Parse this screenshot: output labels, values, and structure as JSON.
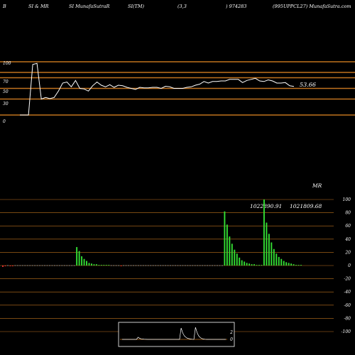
{
  "header": {
    "items": [
      "B",
      "SI & MR",
      "SI MunafaSutraR",
      "SI(TM)",
      "(3,3",
      ") 974283",
      "(995UPPCL27) MunafaSutra.com"
    ]
  },
  "colors": {
    "background": "#000000",
    "band": "#c0731e",
    "rsi_line": "#ffffff",
    "mrsi_bar": "#33dd33",
    "mrsi_neg": "#ff3333",
    "text": "#ffffff"
  },
  "chart_data": [
    {
      "type": "line",
      "name": "rsi",
      "yticks": [
        "100",
        "70",
        "50",
        "30",
        "0"
      ],
      "ylim": [
        0,
        100
      ],
      "bands": [
        100,
        80,
        70,
        50,
        30,
        0
      ],
      "last_value_label": "53.66",
      "values": [
        0,
        0,
        0,
        95,
        97,
        30,
        33,
        31,
        33,
        45,
        60,
        62,
        53,
        65,
        50,
        49,
        45,
        55,
        62,
        56,
        53,
        57,
        52,
        56,
        55,
        52,
        50,
        48,
        52,
        51,
        51,
        52,
        52,
        50,
        54,
        53,
        50,
        50,
        50,
        52,
        53,
        56,
        58,
        63,
        60,
        63,
        63,
        64,
        64,
        67,
        67,
        67,
        61,
        65,
        67,
        69,
        64,
        63,
        66,
        64,
        60,
        60,
        61,
        55,
        53.66
      ]
    },
    {
      "type": "bar",
      "name": "mrsi",
      "title": "MR",
      "yticks": [
        "100",
        "80",
        "60",
        "40",
        "20",
        "0",
        "-20",
        "-40",
        "-60",
        "-80",
        "-100"
      ],
      "ylim": [
        -100,
        100
      ],
      "annotations": [
        "1022890.91",
        "1021809.68"
      ],
      "values": [
        -2,
        -1,
        0,
        -1,
        -1,
        0,
        0,
        0,
        0,
        0,
        0,
        0,
        0,
        0,
        0,
        0,
        0,
        0,
        0,
        0,
        0,
        0,
        0,
        0,
        0,
        0,
        0,
        0,
        0,
        0,
        28,
        22,
        14,
        10,
        7,
        4,
        3,
        2,
        2,
        1,
        1,
        1,
        1,
        1,
        0,
        0,
        0,
        0,
        -1,
        0,
        0,
        0,
        0,
        0,
        0,
        0,
        0,
        0,
        0,
        0,
        0,
        0,
        0,
        0,
        0,
        0,
        0,
        0,
        0,
        0,
        0,
        0,
        0,
        0,
        0,
        0,
        0,
        0,
        0,
        0,
        0,
        0,
        0,
        0,
        0,
        0,
        0,
        0,
        0,
        0,
        82,
        62,
        44,
        33,
        24,
        18,
        12,
        8,
        6,
        4,
        3,
        2,
        2,
        1,
        1,
        1,
        100,
        65,
        48,
        35,
        25,
        18,
        13,
        10,
        7,
        5,
        4,
        3,
        2,
        1,
        1,
        1
      ]
    },
    {
      "type": "line",
      "name": "mini-overview",
      "yticks": [
        "2",
        "0"
      ],
      "values": [
        0,
        0,
        0,
        0,
        0,
        0,
        0,
        0,
        0,
        0,
        0.6,
        0.3,
        0.15,
        0.1,
        0.05,
        0.02,
        0,
        0,
        0,
        0,
        0,
        0,
        0,
        0,
        0,
        0,
        0,
        0,
        0,
        0,
        0,
        0,
        0,
        0,
        0,
        0,
        0,
        3.2,
        1.8,
        1.0,
        0.6,
        0.3,
        0.2,
        0.1,
        0.05,
        0,
        3.4,
        1.9,
        1.0,
        0.5,
        0.25,
        0.1,
        0.05,
        0,
        0,
        0,
        0,
        0,
        0,
        0,
        0,
        0,
        0,
        0,
        0,
        0
      ]
    }
  ]
}
